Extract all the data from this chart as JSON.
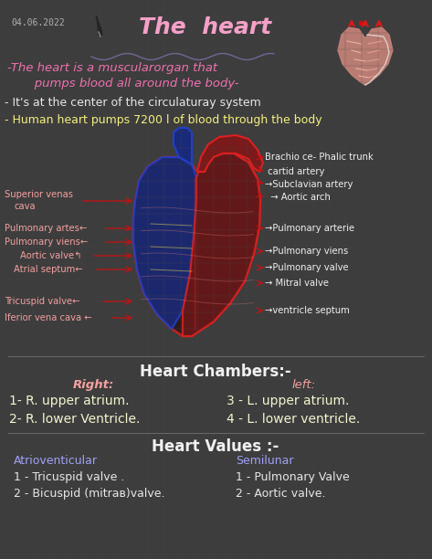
{
  "bg_color": "#3d3d3d",
  "grid_color": "#4a4a4a",
  "title": "The  heart",
  "date": "04.06.2022",
  "title_color": "#f5a0c8",
  "title_fontsize": 18,
  "date_color": "#b0b0b0",
  "subtitle_line1": "-The heart is a muscularorgan that",
  "subtitle_line2": "   pumps blood all around the body-",
  "subtitle_color": "#f070b0",
  "bullet1": "- It's at the center of the circulaturay system",
  "bullet1_color": "#e8e8e8",
  "bullet2": "- Human heart pumps 7200 l of blood through the body",
  "bullet2_color": "#f5f080",
  "label_color_left": "#f5a0a0",
  "label_color_right": "#f0f0f0",
  "arrow_color": "#cc1010",
  "section_chambers": "Heart Chambers:-",
  "section_chambers_color": "#f0f0f0",
  "right_header": "left:",
  "left_header": "Right:",
  "header_color": "#f5a0a0",
  "chambers_color": "#f5f5d0",
  "section_valves": "Heart Values :-",
  "section_valves_color": "#f0f0f0",
  "valves_left_header": "Atrioventicular",
  "valves_left1": "1 - Tricuspid valve .",
  "valves_left2": "2 - Bicuspid (mitraв)valve.",
  "valves_right_header": "Semilunar",
  "valves_right1": "1 - Pulmonary Valve",
  "valves_right2": "2 - Aortic valve.",
  "valves_header_color": "#a0a0f8",
  "valves_text_color": "#e8e8e8"
}
